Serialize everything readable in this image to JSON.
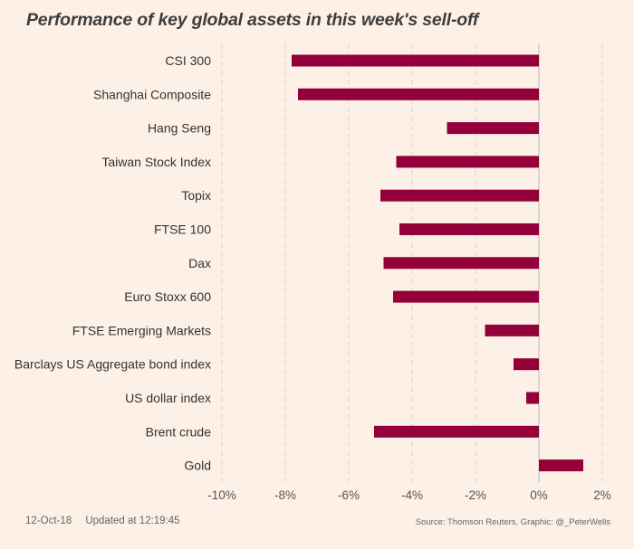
{
  "chart_data": {
    "type": "bar",
    "orientation": "horizontal",
    "title": "Performance of key global assets in this week's sell-off",
    "xlabel": "",
    "ylabel": "",
    "xlim": [
      -10,
      2.5
    ],
    "x_ticks": [
      -10,
      -8,
      -6,
      -4,
      -2,
      0,
      2
    ],
    "x_tick_labels": [
      "-10%",
      "-8%",
      "-6%",
      "-4%",
      "-2%",
      "0%",
      "2%"
    ],
    "grid": "vertical dashed",
    "bar_color": "#93003a",
    "categories": [
      "CSI 300",
      "Shanghai Composite",
      "Hang Seng",
      "Taiwan Stock Index",
      "Topix",
      "FTSE 100",
      "Dax",
      "Euro Stoxx 600",
      "FTSE Emerging Markets",
      "Barclays US Aggregate bond index",
      "US dollar index",
      "Brent crude",
      "Gold"
    ],
    "values": [
      -7.8,
      -7.6,
      -2.9,
      -4.5,
      -5.0,
      -4.4,
      -4.9,
      -4.6,
      -1.7,
      -0.8,
      -0.4,
      -5.2,
      1.4
    ],
    "units": "%"
  },
  "footer": {
    "date": "12-Oct-18",
    "updated": "Updated at 12:19:45",
    "source": "Source: Thomson Reuters, Graphic: @_PeterWells"
  }
}
